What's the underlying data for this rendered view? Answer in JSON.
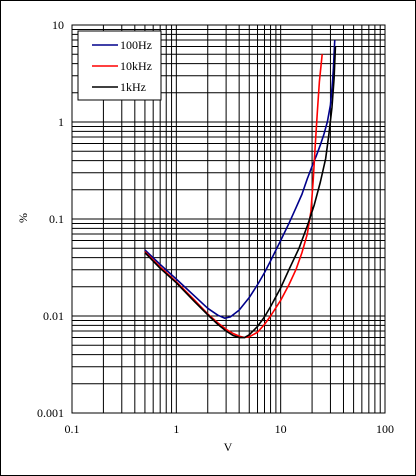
{
  "chart_data": {
    "type": "line",
    "title": "",
    "xlabel": "V",
    "ylabel": "%",
    "xscale": "log",
    "yscale": "log",
    "xlim": [
      0.1,
      100
    ],
    "ylim": [
      0.001,
      10
    ],
    "x_tick_labels": [
      "0.1",
      "1",
      "10",
      "100"
    ],
    "y_tick_labels": [
      "0.001",
      "0.01",
      "0.1",
      "1",
      "10"
    ],
    "grid": true,
    "legend_position": "top-left",
    "series": [
      {
        "name": "100Hz",
        "color": "#00008b",
        "points": [
          [
            0.5,
            0.048
          ],
          [
            0.7,
            0.034
          ],
          [
            1.0,
            0.024
          ],
          [
            1.5,
            0.016
          ],
          [
            2.0,
            0.012
          ],
          [
            2.5,
            0.0102
          ],
          [
            2.9,
            0.0095
          ],
          [
            3.3,
            0.0098
          ],
          [
            4.0,
            0.0115
          ],
          [
            5.0,
            0.0155
          ],
          [
            6.0,
            0.021
          ],
          [
            7.0,
            0.028
          ],
          [
            8.0,
            0.037
          ],
          [
            10.0,
            0.06
          ],
          [
            12.0,
            0.09
          ],
          [
            14.0,
            0.13
          ],
          [
            16.0,
            0.18
          ],
          [
            18.0,
            0.26
          ],
          [
            20.0,
            0.35
          ],
          [
            22.0,
            0.45
          ],
          [
            24.0,
            0.58
          ],
          [
            26.0,
            0.75
          ],
          [
            28.0,
            1.0
          ],
          [
            30.0,
            1.5
          ],
          [
            31.0,
            2.2
          ],
          [
            32.0,
            3.5
          ],
          [
            33.0,
            7.0
          ]
        ]
      },
      {
        "name": "10kHz",
        "color": "#ff0000",
        "points": [
          [
            0.5,
            0.046
          ],
          [
            0.7,
            0.032
          ],
          [
            1.0,
            0.0225
          ],
          [
            1.5,
            0.0145
          ],
          [
            2.0,
            0.0105
          ],
          [
            2.5,
            0.0085
          ],
          [
            3.0,
            0.0073
          ],
          [
            3.5,
            0.0066
          ],
          [
            4.0,
            0.0062
          ],
          [
            4.5,
            0.006
          ],
          [
            5.0,
            0.0061
          ],
          [
            6.0,
            0.0068
          ],
          [
            7.0,
            0.0082
          ],
          [
            8.0,
            0.01
          ],
          [
            10.0,
            0.0145
          ],
          [
            12.0,
            0.021
          ],
          [
            14.0,
            0.03
          ],
          [
            16.0,
            0.045
          ],
          [
            18.0,
            0.07
          ],
          [
            19.5,
            0.12
          ],
          [
            20.5,
            0.25
          ],
          [
            21.5,
            0.6
          ],
          [
            22.5,
            1.3
          ],
          [
            23.5,
            2.6
          ],
          [
            25.0,
            5.0
          ]
        ]
      },
      {
        "name": "1kHz",
        "color": "#000000",
        "points": [
          [
            0.5,
            0.045
          ],
          [
            0.7,
            0.031
          ],
          [
            1.0,
            0.022
          ],
          [
            1.5,
            0.014
          ],
          [
            2.0,
            0.0103
          ],
          [
            2.5,
            0.0082
          ],
          [
            3.0,
            0.007
          ],
          [
            3.5,
            0.0063
          ],
          [
            4.0,
            0.006
          ],
          [
            4.5,
            0.006
          ],
          [
            5.0,
            0.0064
          ],
          [
            6.0,
            0.0078
          ],
          [
            7.0,
            0.0098
          ],
          [
            8.0,
            0.0125
          ],
          [
            10.0,
            0.0195
          ],
          [
            12.0,
            0.03
          ],
          [
            15.0,
            0.05
          ],
          [
            18.0,
            0.085
          ],
          [
            21.0,
            0.14
          ],
          [
            24.0,
            0.24
          ],
          [
            27.0,
            0.42
          ],
          [
            29.0,
            0.75
          ],
          [
            31.0,
            1.4
          ],
          [
            32.5,
            2.8
          ],
          [
            33.5,
            6.0
          ]
        ]
      }
    ]
  }
}
